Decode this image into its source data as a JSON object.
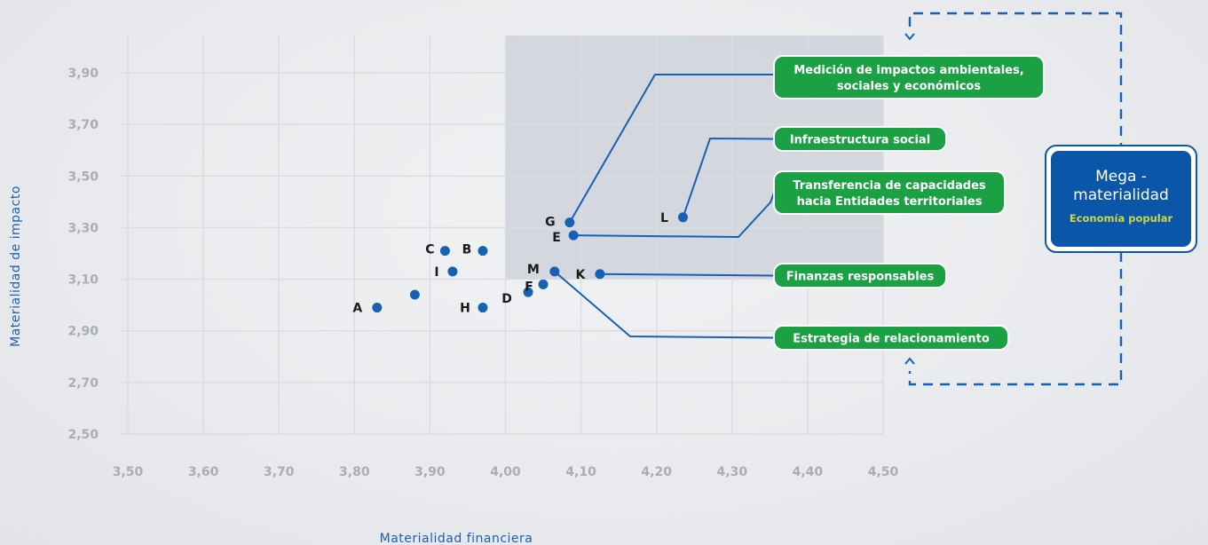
{
  "chart_data": {
    "type": "scatter",
    "xlabel": "Materialidad financiera",
    "ylabel": "Materialidad de impacto",
    "xlim": [
      3.5,
      4.5
    ],
    "ylim": [
      2.5,
      3.9
    ],
    "x_ticks": [
      "3,50",
      "3,60",
      "3,70",
      "3,80",
      "3,90",
      "4,00",
      "4,10",
      "4,20",
      "4,30",
      "4,40",
      "4,50"
    ],
    "y_ticks": [
      "2,50",
      "2,70",
      "2,90",
      "3,10",
      "3,30",
      "3,50",
      "3,70",
      "3,90"
    ],
    "grid": true,
    "highlight_region": {
      "x": [
        4.0,
        4.5
      ],
      "y": [
        3.1,
        3.9
      ]
    },
    "point_color": "#1760b3",
    "points": [
      {
        "label": "A",
        "x": 3.83,
        "y": 2.99
      },
      {
        "label": "",
        "x": 3.88,
        "y": 3.04
      },
      {
        "label": "C",
        "x": 3.92,
        "y": 3.21
      },
      {
        "label": "B",
        "x": 3.97,
        "y": 3.21
      },
      {
        "label": "I",
        "x": 3.93,
        "y": 3.13
      },
      {
        "label": "H",
        "x": 3.97,
        "y": 2.99
      },
      {
        "label": "D",
        "x": 4.03,
        "y": 3.05
      },
      {
        "label": "F",
        "x": 4.05,
        "y": 3.08
      },
      {
        "label": "M",
        "x": 4.065,
        "y": 3.13
      },
      {
        "label": "K",
        "x": 4.125,
        "y": 3.12
      },
      {
        "label": "G",
        "x": 4.085,
        "y": 3.32
      },
      {
        "label": "E",
        "x": 4.09,
        "y": 3.27
      },
      {
        "label": "L",
        "x": 4.235,
        "y": 3.34
      }
    ],
    "callouts": [
      {
        "lines": [
          "Medición de impactos ambientales,",
          "sociales y económicos"
        ],
        "point": "G",
        "color": "#1ba043"
      },
      {
        "lines": [
          "Infraestructura social"
        ],
        "point": "L",
        "color": "#1ba043"
      },
      {
        "lines": [
          "Transferencia de capacidades",
          "hacia Entidades territoriales"
        ],
        "point": "E",
        "color": "#1ba043"
      },
      {
        "lines": [
          "Finanzas responsables"
        ],
        "point": "K",
        "color": "#1ba043"
      },
      {
        "lines": [
          "Estrategia de relacionamiento"
        ],
        "point": "M",
        "color": "#1ba043"
      }
    ],
    "mega_box": {
      "title_lines": [
        "Mega -",
        "materialidad"
      ],
      "subtitle": "Economía popular",
      "color": "#0b56a8",
      "subtitle_color": "#c9d84a"
    }
  }
}
